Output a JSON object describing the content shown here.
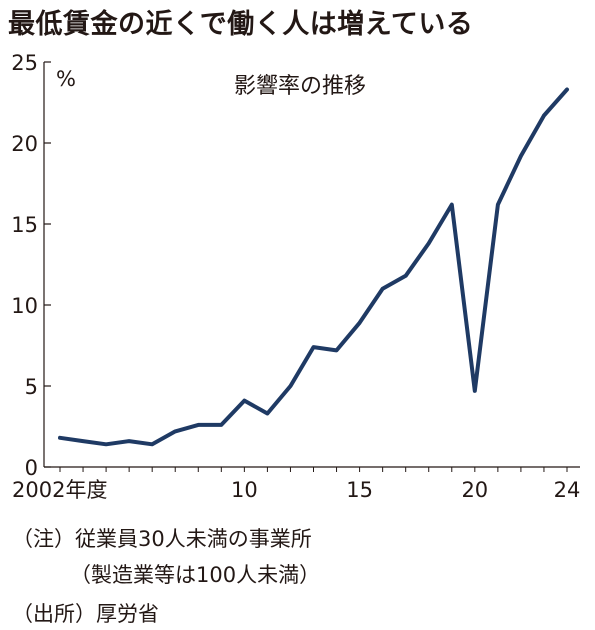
{
  "title": "最低賃金の近くで働く人は増えている",
  "chart_data": {
    "type": "line",
    "title": "影響率の推移",
    "unit_label": "%",
    "x": [
      2002,
      2003,
      2004,
      2005,
      2006,
      2007,
      2008,
      2009,
      2010,
      2011,
      2012,
      2013,
      2014,
      2015,
      2016,
      2017,
      2018,
      2019,
      2020,
      2021,
      2022,
      2023,
      2024
    ],
    "series": [
      {
        "values": [
          1.8,
          1.6,
          1.4,
          1.6,
          1.4,
          2.2,
          2.6,
          2.6,
          4.1,
          3.3,
          5.0,
          7.4,
          7.2,
          8.9,
          11.0,
          11.8,
          13.8,
          16.2,
          4.7,
          16.2,
          19.2,
          21.7,
          23.3
        ]
      }
    ],
    "x_ticks": [
      {
        "value": 2002,
        "label": "2002年度"
      },
      {
        "value": 2010,
        "label": "10"
      },
      {
        "value": 2015,
        "label": "15"
      },
      {
        "value": 2020,
        "label": "20"
      },
      {
        "value": 2024,
        "label": "24"
      }
    ],
    "y_ticks": [
      0,
      5,
      10,
      15,
      20,
      25
    ],
    "ylim": [
      0,
      25
    ],
    "xlim": [
      2002,
      2024
    ],
    "grid": false,
    "line_color": "#1f3a64"
  },
  "notes": {
    "note1": "（注）従業員30人未満の事業所",
    "note2": "（製造業等は100人未満）",
    "source": "（出所）厚労省"
  }
}
